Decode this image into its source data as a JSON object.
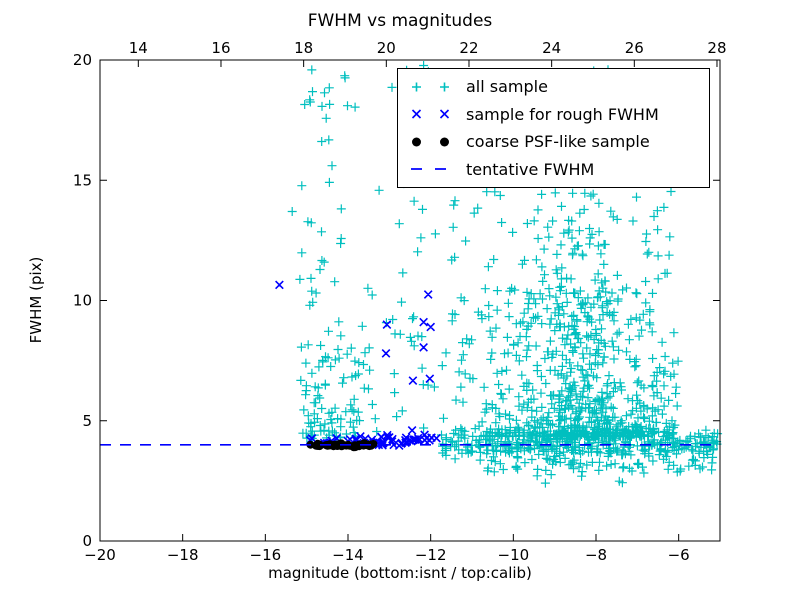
{
  "figure": {
    "title": "FWHM vs magnitudes",
    "xlabel": "magnitude (bottom:isnt / top:calib)",
    "ylabel": "FWHM (pix)"
  },
  "colors": {
    "all_sample": "#00bfbf",
    "rough_fwhm": "#0000ff",
    "psf_like": "#000000",
    "tentative": "#0000ff",
    "axis": "#000000",
    "background": "#ffffff"
  },
  "legend": {
    "position": "upper right",
    "items": [
      {
        "label": "all sample",
        "marker": "plus"
      },
      {
        "label": "sample for rough FWHM",
        "marker": "cross"
      },
      {
        "label": "coarse PSF-like sample",
        "marker": "dot"
      },
      {
        "label": "tentative FWHM",
        "marker": "dashed-line"
      }
    ]
  },
  "chart_data": {
    "type": "scatter",
    "title": "FWHM vs magnitudes",
    "xlabel": "magnitude (bottom:isnt / top:calib)",
    "ylabel": "FWHM (pix)",
    "grid": false,
    "legend_position": "upper right",
    "x_axis_bottom": {
      "range": [
        -20,
        -5
      ],
      "ticks": [
        {
          "v": -20,
          "label": "−20"
        },
        {
          "v": -18,
          "label": "−18"
        },
        {
          "v": -16,
          "label": "−16"
        },
        {
          "v": -14,
          "label": "−14"
        },
        {
          "v": -12,
          "label": "−12"
        },
        {
          "v": -10,
          "label": "−10"
        },
        {
          "v": -8,
          "label": "−8"
        },
        {
          "v": -6,
          "label": "−6"
        }
      ]
    },
    "x_axis_top": {
      "range": [
        13.073,
        28.073
      ],
      "ticks": [
        {
          "v": 14,
          "label": "14"
        },
        {
          "v": 16,
          "label": "16"
        },
        {
          "v": 18,
          "label": "18"
        },
        {
          "v": 20,
          "label": "20"
        },
        {
          "v": 22,
          "label": "22"
        },
        {
          "v": 24,
          "label": "24"
        },
        {
          "v": 26,
          "label": "26"
        },
        {
          "v": 28,
          "label": "28"
        }
      ]
    },
    "y_axis": {
      "range": [
        0,
        20
      ],
      "ticks": [
        {
          "v": 0,
          "label": "0"
        },
        {
          "v": 5,
          "label": "5"
        },
        {
          "v": 10,
          "label": "10"
        },
        {
          "v": 15,
          "label": "15"
        },
        {
          "v": 20,
          "label": "20"
        }
      ]
    },
    "tentative_fwhm": 4.0,
    "series": [
      {
        "name": "all sample",
        "marker": "+",
        "color": "#00bfbf",
        "seed": 42,
        "clusters": [
          {
            "n": 12,
            "x": [
              -15.05,
              -14.35
            ],
            "y": [
              16.5,
              20.0
            ]
          },
          {
            "n": 4,
            "x": [
              -14.2,
              -13.5
            ],
            "y": [
              18.0,
              19.6
            ]
          },
          {
            "n": 5,
            "x": [
              -13.0,
              -11.3
            ],
            "y": [
              18.8,
              20.0
            ]
          },
          {
            "n": 9,
            "x": [
              -15.2,
              -14.1
            ],
            "y": [
              12.0,
              16.2
            ]
          },
          {
            "n": 14,
            "x": [
              -15.25,
              -14.15
            ],
            "y": [
              8.0,
              12.0
            ]
          },
          {
            "n": 55,
            "x": [
              -15.15,
              -14.3
            ],
            "y": [
              4.25,
              8.2
            ],
            "ybias": 1.6
          },
          {
            "n": 38,
            "x": [
              -14.3,
              -13.45
            ],
            "y": [
              4.3,
              9.0
            ],
            "ybias": 1.8
          },
          {
            "n": 26,
            "x": [
              -13.45,
              -11.6
            ],
            "y": [
              4.4,
              9.5
            ],
            "ybias": 1.5
          },
          {
            "n": 12,
            "x": [
              -13.6,
              -11.7
            ],
            "y": [
              9.5,
              15.5
            ]
          },
          {
            "n": 25,
            "x": [
              -11.5,
              -6.0
            ],
            "y": [
              15.0,
              20.0
            ]
          },
          {
            "n": 240,
            "x": [
              -11.5,
              -6.1
            ],
            "y": [
              4.5,
              15.0
            ],
            "ybias": 2.2
          },
          {
            "n": 520,
            "x": {
              "c": -8.3,
              "s": 1.05,
              "min": -11.2,
              "max": -6.0
            },
            "y": [
              4.35,
              10.5
            ],
            "ybias": 2.8
          },
          {
            "n": 90,
            "x": {
              "c": -8.6,
              "s": 0.9,
              "min": -11.0,
              "max": -6.3
            },
            "y": [
              9.0,
              14.5
            ],
            "ybias": 1.3
          },
          {
            "n": 330,
            "x": [
              -11.8,
              -5.05
            ],
            "y": {
              "c": 4.05,
              "s": 0.28,
              "min": 3.3,
              "max": 4.9
            }
          },
          {
            "n": 70,
            "x": [
              -10.8,
              -5.05
            ],
            "y": [
              2.85,
              3.7
            ]
          },
          {
            "n": 7,
            "x": [
              -9.5,
              -6.5
            ],
            "y": [
              2.3,
              2.85
            ]
          }
        ],
        "points": [
          [
            -15.35,
            13.7
          ],
          [
            -5.15,
            4.1
          ],
          [
            -5.3,
            3.6
          ]
        ]
      },
      {
        "name": "sample for rough FWHM",
        "marker": "x",
        "color": "#0000ff",
        "seed": 7,
        "clusters": [
          {
            "n": 55,
            "x": [
              -14.95,
              -11.75
            ],
            "y": {
              "c": 4.15,
              "s": 0.1,
              "min": 3.95,
              "max": 4.45
            }
          }
        ],
        "points": [
          [
            -15.66,
            10.65
          ],
          [
            -12.06,
            10.25
          ],
          [
            -12.17,
            9.1
          ],
          [
            -13.06,
            9.0
          ],
          [
            -12.0,
            8.9
          ],
          [
            -12.17,
            8.05
          ],
          [
            -13.08,
            7.8
          ],
          [
            -12.43,
            6.67
          ],
          [
            -12.02,
            6.75
          ],
          [
            -13.7,
            4.35
          ],
          [
            -12.45,
            4.6
          ],
          [
            -11.98,
            4.3
          ]
        ]
      },
      {
        "name": "coarse PSF-like sample",
        "marker": "dot",
        "color": "#000000",
        "seed": 5,
        "clusters": [
          {
            "n": 24,
            "x": [
              -14.92,
              -14.25
            ],
            "y": {
              "c": 3.98,
              "s": 0.05,
              "min": 3.86,
              "max": 4.1
            }
          },
          {
            "n": 16,
            "x": [
              -14.2,
              -13.8
            ],
            "y": {
              "c": 3.98,
              "s": 0.05,
              "min": 3.86,
              "max": 4.1
            }
          },
          {
            "n": 18,
            "x": [
              -13.75,
              -13.28
            ],
            "y": {
              "c": 3.98,
              "s": 0.05,
              "min": 3.86,
              "max": 4.1
            }
          }
        ],
        "points": []
      },
      {
        "name": "tentative FWHM",
        "type": "hline",
        "y": 4.0,
        "style": "dashed",
        "color": "#0000ff"
      }
    ]
  }
}
